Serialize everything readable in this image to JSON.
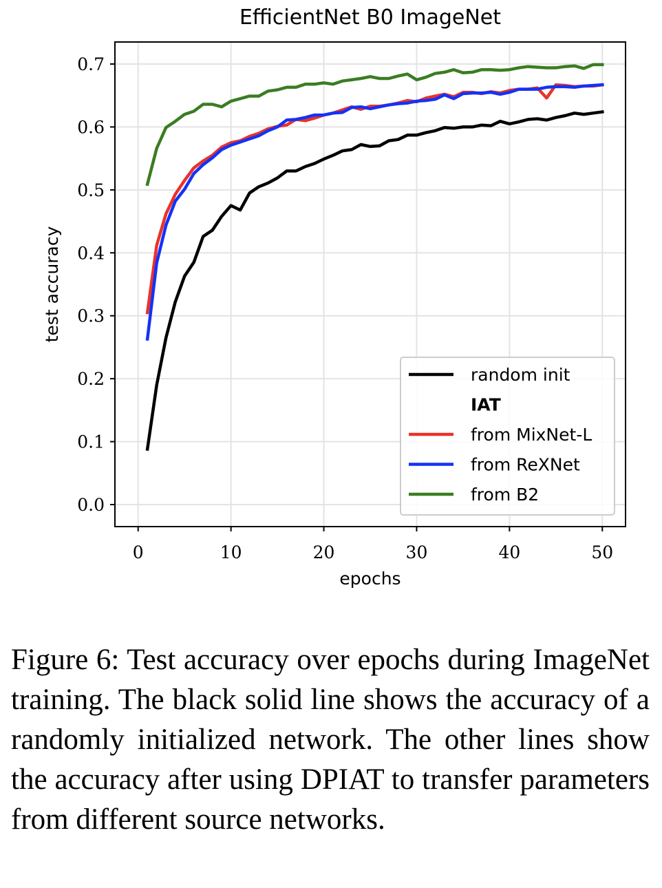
{
  "chart_data": {
    "type": "line",
    "title": "EfficientNet B0 ImageNet",
    "xlabel": "epochs",
    "ylabel": "test accuracy",
    "xlim": [
      -2.5,
      52.5
    ],
    "ylim": [
      -0.035,
      0.735
    ],
    "xticks": [
      0,
      10,
      20,
      30,
      40,
      50
    ],
    "yticks": [
      0.0,
      0.1,
      0.2,
      0.3,
      0.4,
      0.5,
      0.6,
      0.7
    ],
    "xtick_labels": [
      "0",
      "10",
      "20",
      "30",
      "40",
      "50"
    ],
    "ytick_labels": [
      "0.0",
      "0.1",
      "0.2",
      "0.3",
      "0.4",
      "0.5",
      "0.6",
      "0.7"
    ],
    "grid": true,
    "legend_position": "lower-right",
    "legend_group_header": "IAT",
    "x": [
      1,
      2,
      3,
      4,
      5,
      6,
      7,
      8,
      9,
      10,
      11,
      12,
      13,
      14,
      15,
      16,
      17,
      18,
      19,
      20,
      21,
      22,
      23,
      24,
      25,
      26,
      27,
      28,
      29,
      30,
      31,
      32,
      33,
      34,
      35,
      36,
      37,
      38,
      39,
      40,
      41,
      42,
      43,
      44,
      45,
      46,
      47,
      48,
      49,
      50
    ],
    "series": [
      {
        "name": "random init",
        "color": "#000000",
        "values": [
          0.088,
          0.19,
          0.265,
          0.322,
          0.363,
          0.385,
          0.426,
          0.436,
          0.458,
          0.475,
          0.468,
          0.495,
          0.505,
          0.511,
          0.519,
          0.53,
          0.53,
          0.537,
          0.542,
          0.549,
          0.555,
          0.562,
          0.564,
          0.572,
          0.569,
          0.57,
          0.578,
          0.58,
          0.587,
          0.587,
          0.591,
          0.594,
          0.599,
          0.598,
          0.6,
          0.6,
          0.603,
          0.602,
          0.609,
          0.605,
          0.608,
          0.612,
          0.613,
          0.611,
          0.615,
          0.618,
          0.622,
          0.62,
          0.622,
          0.624
        ]
      },
      {
        "name": "from MixNet-L",
        "color": "#e8332a",
        "values": [
          0.305,
          0.412,
          0.462,
          0.493,
          0.515,
          0.535,
          0.546,
          0.555,
          0.568,
          0.575,
          0.578,
          0.585,
          0.59,
          0.597,
          0.601,
          0.603,
          0.612,
          0.61,
          0.614,
          0.619,
          0.622,
          0.627,
          0.632,
          0.628,
          0.633,
          0.633,
          0.635,
          0.638,
          0.642,
          0.64,
          0.646,
          0.649,
          0.652,
          0.648,
          0.655,
          0.655,
          0.653,
          0.656,
          0.654,
          0.658,
          0.66,
          0.66,
          0.662,
          0.646,
          0.667,
          0.666,
          0.664,
          0.665,
          0.665,
          0.667
        ]
      },
      {
        "name": "from ReXNet",
        "color": "#1432f5",
        "values": [
          0.263,
          0.384,
          0.444,
          0.482,
          0.501,
          0.526,
          0.54,
          0.551,
          0.564,
          0.571,
          0.576,
          0.581,
          0.586,
          0.594,
          0.6,
          0.611,
          0.612,
          0.615,
          0.619,
          0.619,
          0.622,
          0.623,
          0.631,
          0.632,
          0.629,
          0.632,
          0.635,
          0.637,
          0.638,
          0.641,
          0.642,
          0.644,
          0.651,
          0.645,
          0.653,
          0.654,
          0.654,
          0.655,
          0.652,
          0.655,
          0.66,
          0.66,
          0.66,
          0.663,
          0.664,
          0.664,
          0.663,
          0.665,
          0.666,
          0.667
        ]
      },
      {
        "name": "from B2",
        "color": "#3a7d22",
        "values": [
          0.509,
          0.566,
          0.599,
          0.609,
          0.62,
          0.625,
          0.636,
          0.636,
          0.632,
          0.641,
          0.645,
          0.649,
          0.649,
          0.657,
          0.659,
          0.663,
          0.663,
          0.668,
          0.668,
          0.67,
          0.668,
          0.673,
          0.675,
          0.677,
          0.68,
          0.677,
          0.677,
          0.681,
          0.684,
          0.675,
          0.679,
          0.685,
          0.687,
          0.691,
          0.686,
          0.687,
          0.691,
          0.691,
          0.69,
          0.691,
          0.694,
          0.696,
          0.695,
          0.694,
          0.694,
          0.696,
          0.697,
          0.693,
          0.699,
          0.699
        ]
      }
    ]
  },
  "caption": "Figure 6:  Test accuracy over epochs dur­ing ImageNet training. The black solid line shows the accuracy of a randomly initial­ized network. The other lines show the accu­racy after using DPIAT to transfer parameters from different source networks."
}
